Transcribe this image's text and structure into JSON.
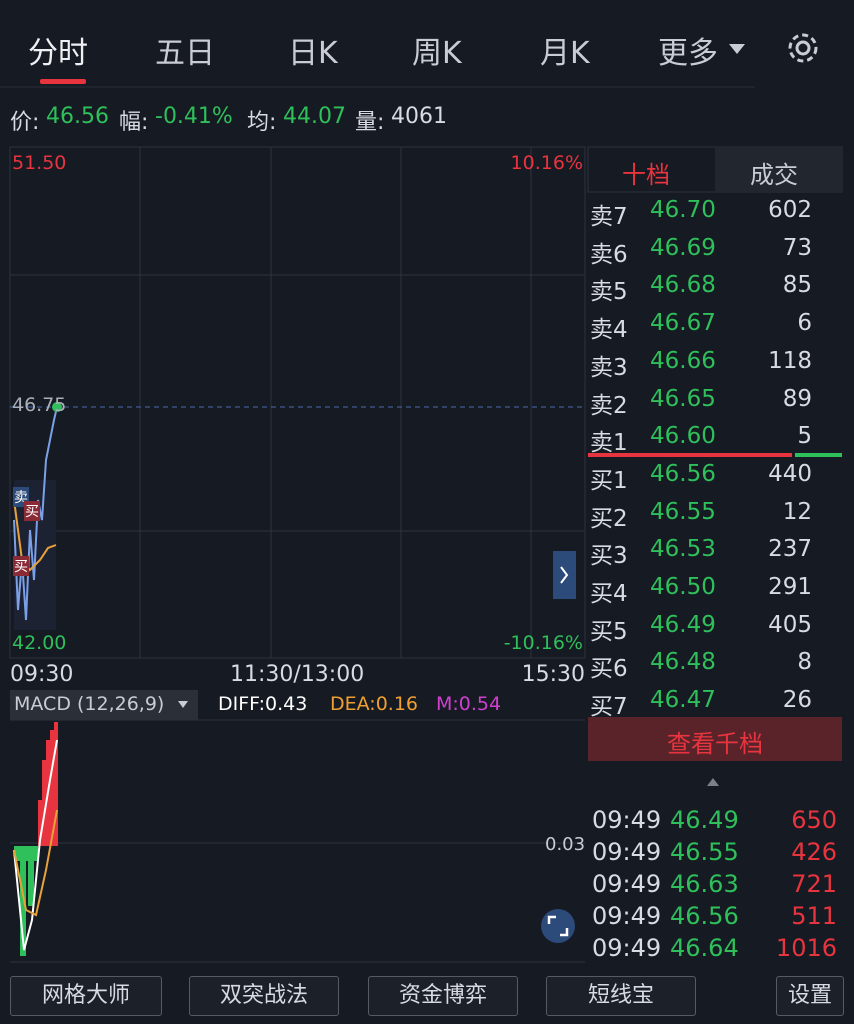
{
  "tabs": [
    "分时",
    "五日",
    "日K",
    "周K",
    "月K",
    "更多"
  ],
  "quote": [
    {
      "label": "价:",
      "value": "46.56"
    },
    {
      "label": "幅:",
      "value": "-0.41%"
    },
    {
      "label": "均:",
      "value": "44.07"
    },
    {
      "label": "量:",
      "value": "4061"
    }
  ],
  "chart": {
    "top_price": "51.50",
    "top_pct": "10.16%",
    "current": "46.75",
    "bottom_price": "42.00",
    "bottom_pct": "-10.16%",
    "times": [
      "09:30",
      "11:30/13:00",
      "15:30"
    ],
    "markers": [
      "卖",
      "买",
      "买"
    ]
  },
  "macd": {
    "name": "MACD (12,26,9)",
    "diff": "DIFF:0.43",
    "dea": "DEA:0.16",
    "m": "M:0.54",
    "level": "0.03"
  },
  "book": {
    "tabs": [
      "十档",
      "成交"
    ],
    "sell": [
      [
        "卖7",
        "46.70",
        "602"
      ],
      [
        "卖6",
        "46.69",
        "73"
      ],
      [
        "卖5",
        "46.68",
        "85"
      ],
      [
        "卖4",
        "46.67",
        "6"
      ],
      [
        "卖3",
        "46.66",
        "118"
      ],
      [
        "卖2",
        "46.65",
        "89"
      ],
      [
        "卖1",
        "46.60",
        "5"
      ]
    ],
    "buy": [
      [
        "买1",
        "46.56",
        "440"
      ],
      [
        "买2",
        "46.55",
        "12"
      ],
      [
        "买3",
        "46.53",
        "237"
      ],
      [
        "买4",
        "46.50",
        "291"
      ],
      [
        "买5",
        "46.49",
        "405"
      ],
      [
        "买6",
        "46.48",
        "8"
      ],
      [
        "买7",
        "46.47",
        "26"
      ]
    ],
    "button": "查看千档"
  },
  "trades": [
    [
      "09:49",
      "46.49",
      "650"
    ],
    [
      "09:49",
      "46.55",
      "426"
    ],
    [
      "09:49",
      "46.63",
      "721"
    ],
    [
      "09:49",
      "46.56",
      "511"
    ],
    [
      "09:49",
      "46.64",
      "1016"
    ]
  ],
  "tools": [
    "网格大师",
    "双突战法",
    "资金博弈",
    "短线宝",
    "设置"
  ]
}
